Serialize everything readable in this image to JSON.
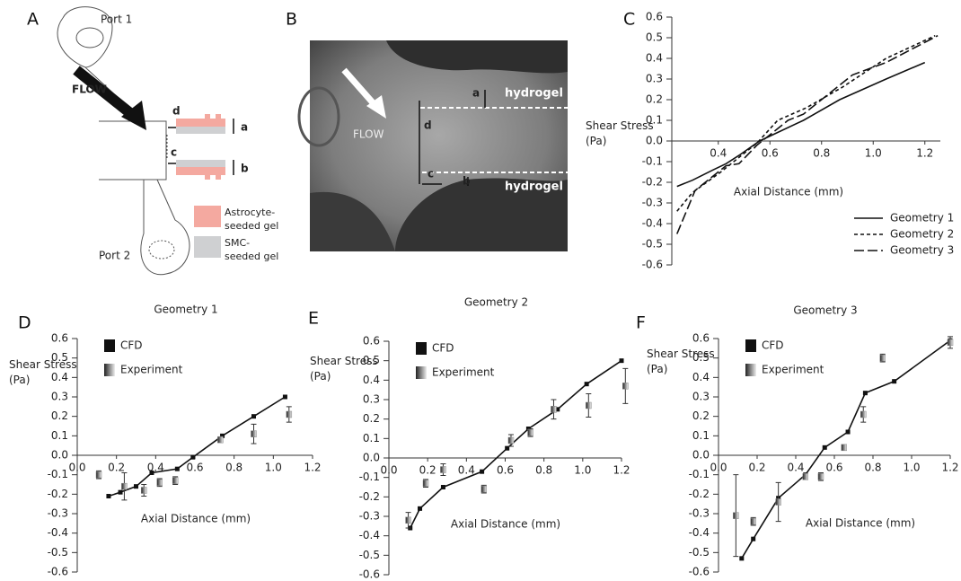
{
  "panel_a": {
    "panel_label": "A",
    "port_1": "Port 1",
    "flow": "FLOW",
    "labels": [
      "d",
      "c",
      "a",
      "b"
    ],
    "legend": [
      "Astrocyte-seeded gel",
      "SMC-seeded gel"
    ],
    "port_2": "Port 2"
  },
  "panel_b": {
    "panel_label": "B",
    "flow": "FLOW",
    "hydrogel_top": "hydrogel",
    "hydrogel_bottom": "hydrogel",
    "labels": [
      "a",
      "d",
      "c",
      "b"
    ]
  },
  "chart_data": [
    {
      "type": "line",
      "panel_label": "C",
      "y_label": "Shear Stress (Pa)",
      "x_label": "Axial Distance (mm)",
      "xlim": [
        0.22,
        1.26
      ],
      "ylim": [
        -0.6,
        0.6
      ],
      "xticks": [
        0.4,
        0.6,
        0.8,
        {
          "value": 1,
          "label": "1.0"
        },
        1.2
      ],
      "yticks": [
        0.6,
        0.5,
        0.4,
        0.3,
        0.2,
        0.1,
        {
          "value": 0,
          "label": "0.0"
        },
        -0.1,
        -0.2,
        -0.3,
        -0.4,
        -0.5,
        -0.6
      ],
      "legend": "lower right",
      "series": [
        {
          "name": "Geometry 1",
          "color": "#111111",
          "dash": "solid",
          "mode": "lines",
          "x": [
            0.24,
            0.3,
            0.38,
            0.43,
            0.48,
            0.56,
            0.73,
            0.87,
            1.05,
            1.2
          ],
          "values": [
            -0.22,
            -0.19,
            -0.14,
            -0.11,
            -0.07,
            0,
            0.1,
            0.2,
            0.3,
            0.38
          ]
        },
        {
          "name": "Geometry 2",
          "color": "#111111",
          "dash": "dashed",
          "mode": "lines",
          "x": [
            0.24,
            0.3,
            0.41,
            0.49,
            0.55,
            0.63,
            0.74,
            0.88,
            1.05,
            1.24
          ],
          "values": [
            -0.34,
            -0.25,
            -0.15,
            -0.07,
            -0.01,
            0.1,
            0.16,
            0.26,
            0.4,
            0.51
          ]
        },
        {
          "name": "Geometry 3",
          "color": "#111111",
          "dash": "long-dashed",
          "mode": "lines",
          "x": [
            0.24,
            0.31,
            0.43,
            0.48,
            0.55,
            0.67,
            0.73,
            0.92,
            1.05,
            1.25
          ],
          "values": [
            -0.45,
            -0.24,
            -0.12,
            -0.11,
            -0.02,
            0.1,
            0.13,
            0.32,
            0.38,
            0.51
          ]
        }
      ]
    },
    {
      "type": "line",
      "panel_label": "D",
      "title": "Geometry 1",
      "y_label": "Shear Stress (Pa)",
      "x_label": "Axial Distance (mm)",
      "xlim": [
        0,
        1.2
      ],
      "ylim": [
        -0.6,
        0.6
      ],
      "xticks": [
        {
          "value": 0,
          "label": "0.0"
        },
        0.2,
        0.4,
        0.6,
        0.8,
        {
          "value": 1,
          "label": "1.0"
        },
        1.2
      ],
      "yticks": [
        0.6,
        0.5,
        0.4,
        0.3,
        0.2,
        0.1,
        {
          "value": 0,
          "label": "0.0"
        },
        -0.1,
        -0.2,
        -0.3,
        -0.4,
        -0.5,
        -0.6
      ],
      "legend": "upper left",
      "series": [
        {
          "name": "CFD",
          "color": "#111111",
          "mode": "lines+markers",
          "x": [
            0.16,
            0.22,
            0.3,
            0.38,
            0.51,
            0.59,
            0.74,
            0.9,
            1.06
          ],
          "values": [
            -0.21,
            -0.19,
            -0.16,
            -0.09,
            -0.07,
            -0.01,
            0.1,
            0.2,
            0.3
          ]
        },
        {
          "name": "Experiment",
          "color": "#888888",
          "mode": "markers",
          "x": [
            0.11,
            0.24,
            0.34,
            0.42,
            0.5,
            0.73,
            0.9,
            1.08
          ],
          "values": [
            -0.1,
            -0.16,
            -0.18,
            -0.14,
            -0.13,
            0.08,
            0.11,
            0.21
          ],
          "errors": [
            0.02,
            0.07,
            0.03,
            0.02,
            0.02,
            0.01,
            0.05,
            0.04
          ]
        }
      ]
    },
    {
      "type": "line",
      "panel_label": "E",
      "title": "Geometry 2",
      "y_label": "Shear Stress (Pa)",
      "x_label": "Axial Distance (mm)",
      "xlim": [
        0,
        1.2
      ],
      "ylim": [
        -0.6,
        0.6
      ],
      "xticks": [
        {
          "value": 0,
          "label": "0.0"
        },
        0.2,
        0.4,
        0.6,
        0.8,
        {
          "value": 1,
          "label": "1.0"
        },
        1.2
      ],
      "yticks": [
        0.6,
        0.5,
        0.4,
        0.3,
        0.2,
        0.1,
        {
          "value": 0,
          "label": "0.0"
        },
        -0.1,
        -0.2,
        -0.3,
        -0.4,
        -0.5,
        -0.6
      ],
      "legend": "upper left",
      "series": [
        {
          "name": "CFD",
          "color": "#111111",
          "mode": "lines+markers",
          "x": [
            0.11,
            0.16,
            0.28,
            0.48,
            0.61,
            0.72,
            0.87,
            1.02,
            1.2
          ],
          "values": [
            -0.36,
            -0.26,
            -0.15,
            -0.07,
            0.05,
            0.15,
            0.25,
            0.38,
            0.5
          ]
        },
        {
          "name": "Experiment",
          "color": "#888888",
          "mode": "markers",
          "x": [
            0.1,
            0.19,
            0.28,
            0.49,
            0.63,
            0.73,
            0.85,
            1.03,
            1.22
          ],
          "values": [
            -0.32,
            -0.13,
            -0.06,
            -0.16,
            0.09,
            0.13,
            0.25,
            0.27,
            0.37
          ],
          "errors": [
            0.04,
            0.02,
            0.03,
            0.02,
            0.03,
            0.02,
            0.05,
            0.06,
            0.09
          ]
        }
      ]
    },
    {
      "type": "line",
      "panel_label": "F",
      "title": "Geometry 3",
      "y_label": "Shear Stress (Pa)",
      "x_label": "Axial Distance (mm)",
      "xlim": [
        0,
        1.2
      ],
      "ylim": [
        -0.6,
        0.6
      ],
      "xticks": [
        {
          "value": 0,
          "label": "0.0"
        },
        0.2,
        0.4,
        0.6,
        0.8,
        {
          "value": 1,
          "label": "1.0"
        },
        1.2
      ],
      "yticks": [
        0.6,
        0.5,
        0.4,
        0.3,
        0.2,
        0.1,
        {
          "value": 0,
          "label": "0.0"
        },
        -0.1,
        -0.2,
        -0.3,
        -0.4,
        -0.5,
        -0.6
      ],
      "legend": "upper left",
      "series": [
        {
          "name": "CFD",
          "color": "#111111",
          "mode": "lines+markers",
          "x": [
            0.12,
            0.18,
            0.31,
            0.45,
            0.55,
            0.67,
            0.76,
            0.91,
            1.2
          ],
          "values": [
            -0.53,
            -0.43,
            -0.22,
            -0.1,
            0.04,
            0.12,
            0.32,
            0.38,
            0.59
          ]
        },
        {
          "name": "Experiment",
          "color": "#888888",
          "mode": "markers",
          "x": [
            0.09,
            0.18,
            0.31,
            0.45,
            0.53,
            0.65,
            0.75,
            0.85,
            1.2
          ],
          "values": [
            -0.31,
            -0.34,
            -0.24,
            -0.11,
            -0.11,
            0.04,
            0.21,
            0.5,
            0.58
          ],
          "errors": [
            0.21,
            0.02,
            0.1,
            0.01,
            0.02,
            0.01,
            0.04,
            0.02,
            0.03
          ]
        }
      ]
    }
  ]
}
